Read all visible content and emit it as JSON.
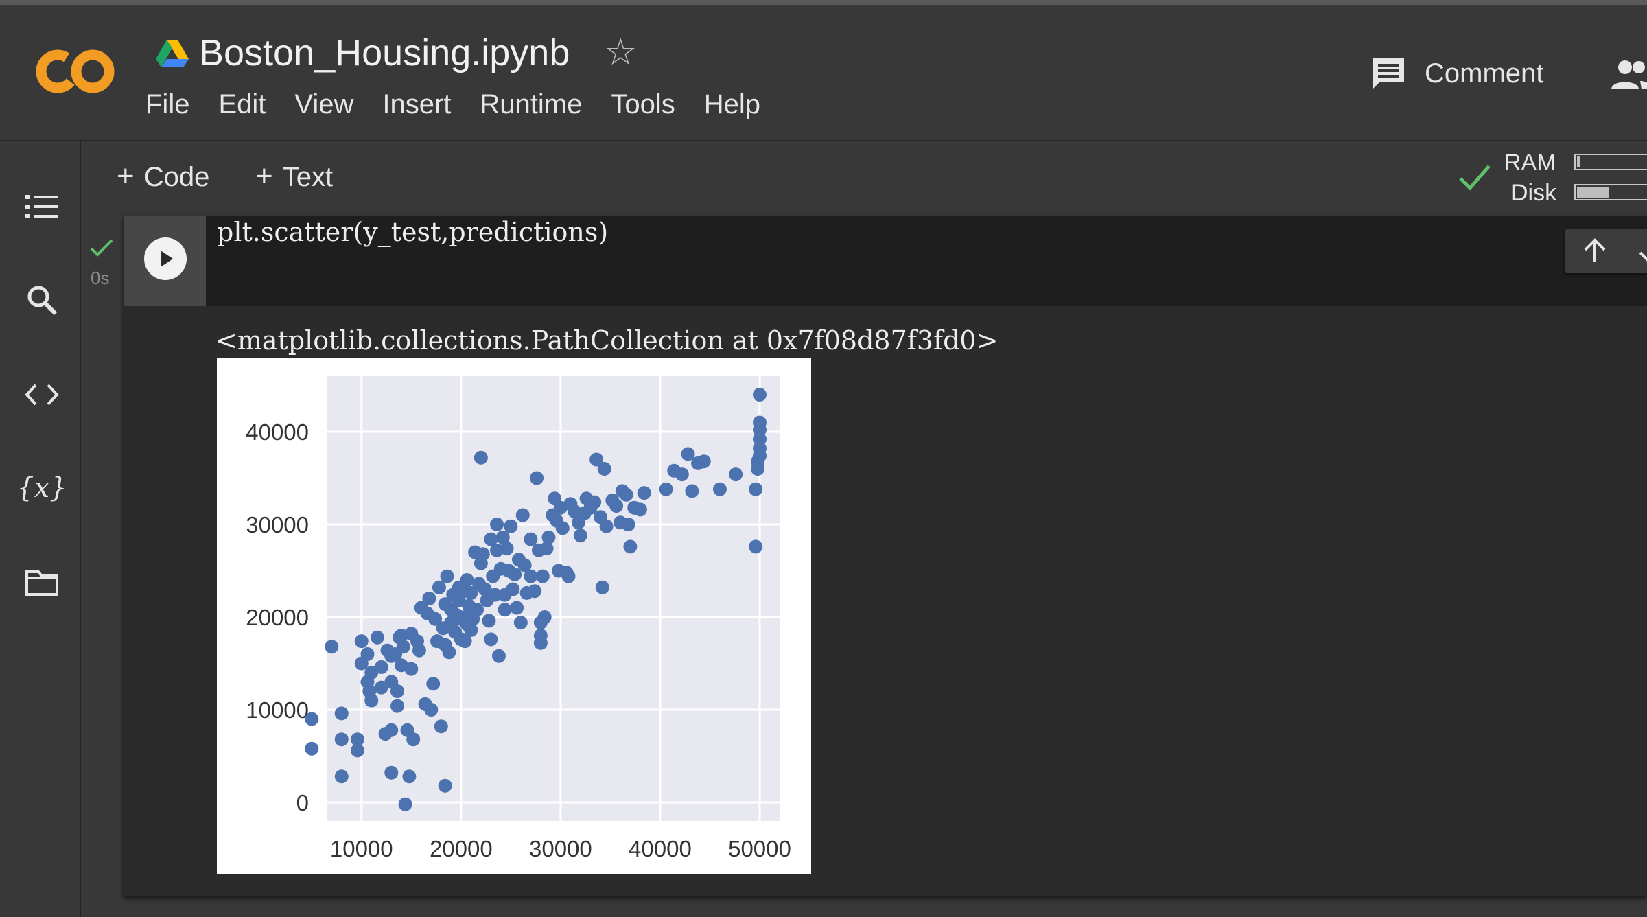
{
  "app": {
    "notebook_title": "Boston_Housing.ipynb",
    "menu": [
      "File",
      "Edit",
      "View",
      "Insert",
      "Runtime",
      "Tools",
      "Help"
    ],
    "comment_label": "Comment",
    "logo_text": "CO"
  },
  "toolbar": {
    "add_code_label": "Code",
    "add_text_label": "Text",
    "ram_label": "RAM",
    "disk_label": "Disk",
    "ram_usage": 0.04,
    "disk_usage": 0.4
  },
  "sidebar": {
    "items": [
      "table-of-contents-icon",
      "search-icon",
      "code-snippets-icon",
      "variables-icon",
      "files-icon"
    ],
    "variables_glyph": "{x}"
  },
  "cell": {
    "code": "plt.scatter(y_test,predictions)",
    "exec_time": "0s",
    "output_text": "<matplotlib.collections.PathCollection at 0x7f08d87f3fd0>"
  },
  "colors": {
    "background": "#383838",
    "code_background": "#1e1e1e",
    "success": "#5fbf6b",
    "point": "#4c72b0",
    "plot_bg": "#e8e9f0",
    "logo_orange": "#f29c24"
  },
  "chart_data": {
    "type": "scatter",
    "title": "",
    "xlabel": "",
    "ylabel": "",
    "xlim": [
      6500,
      52000
    ],
    "ylim": [
      -2000,
      46000
    ],
    "xticks": [
      10000,
      20000,
      30000,
      40000,
      50000
    ],
    "yticks": [
      0,
      10000,
      20000,
      30000,
      40000
    ],
    "grid": true,
    "legend": "none",
    "points": [
      [
        5000,
        9000
      ],
      [
        5000,
        5800
      ],
      [
        7000,
        16800
      ],
      [
        8000,
        9600
      ],
      [
        8000,
        6800
      ],
      [
        8000,
        2800
      ],
      [
        9600,
        6800
      ],
      [
        9600,
        5600
      ],
      [
        10000,
        15000
      ],
      [
        10000,
        17400
      ],
      [
        10600,
        13000
      ],
      [
        10600,
        16000
      ],
      [
        10800,
        12000
      ],
      [
        11000,
        14000
      ],
      [
        11000,
        11000
      ],
      [
        11600,
        17800
      ],
      [
        12000,
        12400
      ],
      [
        12000,
        14600
      ],
      [
        12400,
        7400
      ],
      [
        12600,
        16400
      ],
      [
        13000,
        13000
      ],
      [
        13000,
        15800
      ],
      [
        13000,
        7800
      ],
      [
        13000,
        3200
      ],
      [
        13400,
        16000
      ],
      [
        13600,
        12000
      ],
      [
        13600,
        10400
      ],
      [
        13800,
        17800
      ],
      [
        14000,
        18000
      ],
      [
        14000,
        14800
      ],
      [
        14200,
        16800
      ],
      [
        14400,
        -200
      ],
      [
        14600,
        7800
      ],
      [
        14800,
        2800
      ],
      [
        15000,
        18200
      ],
      [
        15000,
        14400
      ],
      [
        15200,
        6800
      ],
      [
        15600,
        17400
      ],
      [
        15800,
        16400
      ],
      [
        16000,
        21000
      ],
      [
        16400,
        10600
      ],
      [
        16600,
        20400
      ],
      [
        16800,
        22000
      ],
      [
        17000,
        10000
      ],
      [
        17200,
        12800
      ],
      [
        17400,
        19800
      ],
      [
        17600,
        17400
      ],
      [
        17800,
        23200
      ],
      [
        18000,
        8200
      ],
      [
        18200,
        18800
      ],
      [
        18400,
        1800
      ],
      [
        18400,
        17000
      ],
      [
        18400,
        21400
      ],
      [
        18600,
        24400
      ],
      [
        18800,
        16200
      ],
      [
        19000,
        20800
      ],
      [
        19000,
        19400
      ],
      [
        19200,
        22400
      ],
      [
        19400,
        18400
      ],
      [
        19600,
        20200
      ],
      [
        19800,
        23200
      ],
      [
        19800,
        21800
      ],
      [
        20000,
        17600
      ],
      [
        20000,
        19800
      ],
      [
        20200,
        22800
      ],
      [
        20400,
        20000
      ],
      [
        20400,
        17400
      ],
      [
        20600,
        19200
      ],
      [
        20600,
        24000
      ],
      [
        20800,
        21200
      ],
      [
        21000,
        22600
      ],
      [
        21000,
        18600
      ],
      [
        21200,
        19800
      ],
      [
        21400,
        27000
      ],
      [
        21600,
        20800
      ],
      [
        21800,
        23600
      ],
      [
        22000,
        37200
      ],
      [
        22000,
        25800
      ],
      [
        22200,
        26800
      ],
      [
        22400,
        23000
      ],
      [
        22600,
        21800
      ],
      [
        22800,
        19600
      ],
      [
        23000,
        17600
      ],
      [
        23000,
        28400
      ],
      [
        23200,
        24400
      ],
      [
        23400,
        22400
      ],
      [
        23600,
        27200
      ],
      [
        23600,
        30000
      ],
      [
        23800,
        15800
      ],
      [
        24000,
        25200
      ],
      [
        24200,
        28600
      ],
      [
        24400,
        20800
      ],
      [
        24400,
        22400
      ],
      [
        24600,
        27400
      ],
      [
        24800,
        25000
      ],
      [
        25000,
        29800
      ],
      [
        25200,
        23000
      ],
      [
        25400,
        24600
      ],
      [
        25600,
        21000
      ],
      [
        25800,
        26200
      ],
      [
        26000,
        19400
      ],
      [
        26200,
        31000
      ],
      [
        26400,
        25600
      ],
      [
        26600,
        22600
      ],
      [
        27000,
        24400
      ],
      [
        27000,
        28400
      ],
      [
        27400,
        22800
      ],
      [
        27600,
        35000
      ],
      [
        27800,
        27200
      ],
      [
        28000,
        18000
      ],
      [
        28000,
        17200
      ],
      [
        28000,
        19400
      ],
      [
        28200,
        24400
      ],
      [
        28400,
        20000
      ],
      [
        28600,
        27400
      ],
      [
        28800,
        28600
      ],
      [
        29200,
        31000
      ],
      [
        29400,
        32800
      ],
      [
        29600,
        30400
      ],
      [
        29800,
        25000
      ],
      [
        30000,
        31800
      ],
      [
        30200,
        29600
      ],
      [
        30600,
        24800
      ],
      [
        30800,
        24400
      ],
      [
        31000,
        32200
      ],
      [
        31400,
        31400
      ],
      [
        31800,
        30200
      ],
      [
        32000,
        28800
      ],
      [
        32400,
        31200
      ],
      [
        32600,
        32800
      ],
      [
        33000,
        31800
      ],
      [
        33400,
        32400
      ],
      [
        33600,
        37000
      ],
      [
        34000,
        30800
      ],
      [
        34200,
        23200
      ],
      [
        34400,
        36000
      ],
      [
        34600,
        29800
      ],
      [
        35200,
        32600
      ],
      [
        35600,
        32000
      ],
      [
        36000,
        30200
      ],
      [
        36200,
        33600
      ],
      [
        36600,
        33200
      ],
      [
        36800,
        30000
      ],
      [
        37000,
        27600
      ],
      [
        37400,
        31800
      ],
      [
        38000,
        31600
      ],
      [
        38400,
        33400
      ],
      [
        40600,
        33800
      ],
      [
        41400,
        35800
      ],
      [
        42200,
        35400
      ],
      [
        42800,
        37600
      ],
      [
        43200,
        33600
      ],
      [
        43800,
        36600
      ],
      [
        44400,
        36800
      ],
      [
        46000,
        33800
      ],
      [
        47600,
        35400
      ],
      [
        49600,
        33800
      ],
      [
        49600,
        27600
      ],
      [
        49800,
        36000
      ],
      [
        49800,
        36800
      ],
      [
        50000,
        37400
      ],
      [
        50000,
        38200
      ],
      [
        50000,
        39200
      ],
      [
        50000,
        40200
      ],
      [
        50000,
        41000
      ],
      [
        50000,
        44000
      ]
    ]
  }
}
